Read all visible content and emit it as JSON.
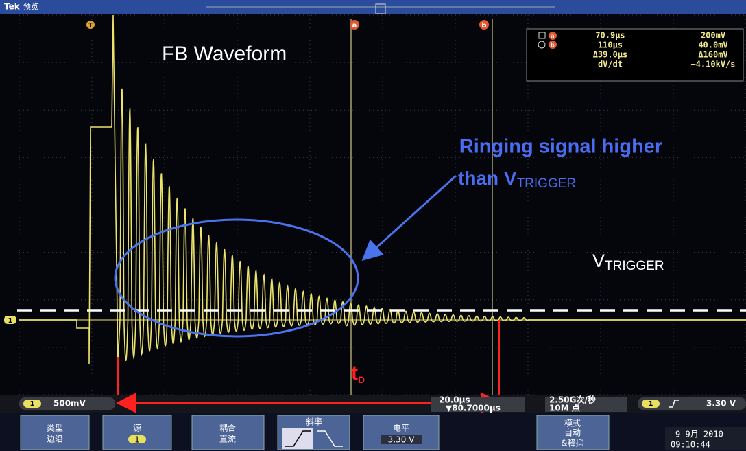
{
  "top_bar": {
    "brand": "Tek",
    "mode": "预览"
  },
  "markers": {
    "trigger": "T",
    "cursor_a": "a",
    "cursor_b": "b",
    "channel": "1"
  },
  "readout": {
    "icon_a": "a",
    "icon_b": "b",
    "rows": [
      [
        "70.9µs",
        "200mV"
      ],
      [
        "110µs",
        "40.0mV"
      ],
      [
        "Δ39.0µs",
        "Δ160mV"
      ],
      [
        "dV/dt",
        "−4.10kV/s"
      ]
    ]
  },
  "annotations": {
    "title": "FB Waveform",
    "ringing_line1": "Ringing signal higher",
    "ringing_line2": "than V",
    "ringing_sub": "TRIGGER",
    "vtrigger": "V",
    "vtrigger_sub": "TRIGGER",
    "td": "t",
    "td_sub": "D"
  },
  "status": {
    "channel": "1",
    "scale": "500mV",
    "timebase": "20.0µs",
    "position": "▼80.7000µs",
    "sample_rate": "2.50G次/秒",
    "record_length": "10M 点",
    "trigger_channel": "1",
    "trigger_level": "3.30 V"
  },
  "menu": [
    {
      "title": "类型",
      "value": "边沿"
    },
    {
      "title": "源",
      "value": "1"
    },
    {
      "title": "耦合",
      "value": "直流"
    },
    {
      "title": "斜率"
    },
    {
      "title": "电平",
      "value": "3.30 V"
    },
    {
      "title": "模式",
      "value": "自动",
      "extra": "&释抑"
    }
  ],
  "datetime": {
    "date": "9 9月 2010",
    "time": "09:10:44"
  }
}
